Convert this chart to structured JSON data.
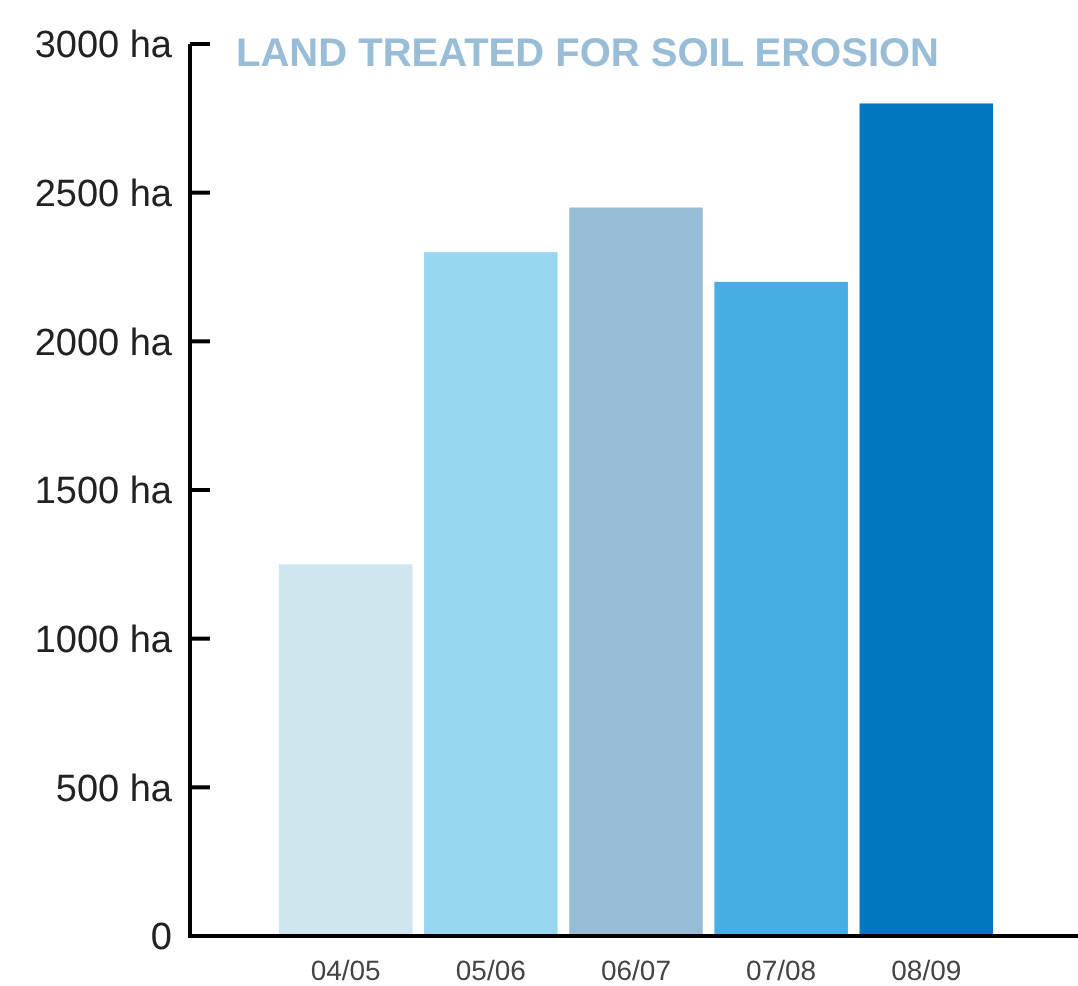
{
  "chart_data": {
    "type": "bar",
    "title": "LAND TREATED FOR SOIL EROSION",
    "categories": [
      "04/05",
      "05/06",
      "06/07",
      "07/08",
      "08/09"
    ],
    "values": [
      1250,
      2300,
      2450,
      2200,
      2800
    ],
    "colors": [
      "#cfe6ee",
      "#97d7f2",
      "#98bbd6",
      "#46aee3",
      "#0077c0"
    ],
    "ylim": [
      0,
      3000
    ],
    "yticks": [
      0,
      {
        "value": 500,
        "label": "500 ha"
      },
      {
        "value": 1000,
        "label": "1000 ha"
      },
      {
        "value": 1500,
        "label": "1500 ha"
      },
      {
        "value": 2000,
        "label": "2000 ha"
      },
      {
        "value": 2500,
        "label": "2500 ha"
      },
      {
        "value": 3000,
        "label": "3000 ha"
      }
    ],
    "grid": false
  }
}
